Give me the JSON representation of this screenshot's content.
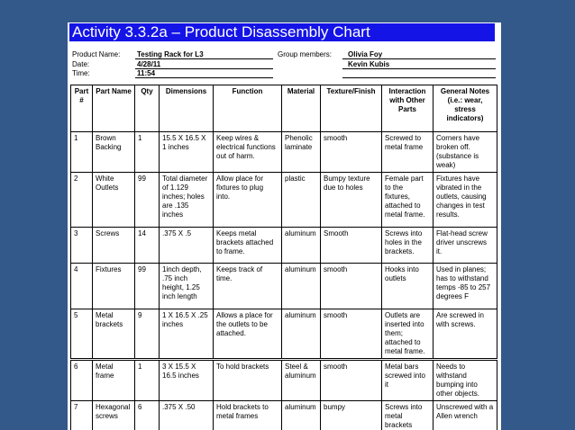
{
  "document": {
    "title": "Activity 3.3.2a – Product Disassembly Chart",
    "product_label": "Product Name:",
    "product_value": "Testing Rack for L3",
    "date_label": "Date:",
    "date_value": "4/28/11",
    "time_label": "Time:",
    "time_value": "11:54",
    "group_label": "Group members:",
    "members": [
      "Olivia Foy",
      "Kevin Kubis"
    ]
  },
  "table": {
    "headers": [
      "Part #",
      "Part Name",
      "Qty",
      "Dimensions",
      "Function",
      "Material",
      "Texture/Finish",
      "Interaction with Other Parts",
      "General Notes (i.e.: wear, stress indicators)"
    ],
    "rows": [
      [
        "1",
        "Brown Backing",
        "1",
        "15.5 X 16.5 X 1 inches",
        "Keep wires & electrical functions out of harm.",
        "Phenolic laminate",
        "smooth",
        "Screwed to metal frame",
        "Corners have broken off. (substance is weak)"
      ],
      [
        "2",
        "White Outlets",
        "99",
        "Total diameter of 1.129 inches; holes are .135 inches",
        "Allow place for fixtures to plug into.",
        "plastic",
        "Bumpy texture due to holes",
        "Female part to the fixtures, attached to metal frame.",
        "Fixtures have vibrated in the outlets, causing changes in test results."
      ],
      [
        "3",
        "Screws",
        "14",
        ".375 X .5",
        "Keeps metal brackets attached to frame.",
        "aluminum",
        "Smooth",
        "Screws into holes in the brackets.",
        "Flat-head screw driver unscrews it."
      ],
      [
        "4",
        "Fixtures",
        "99",
        "1inch depth, .75 inch height, 1.25 inch length",
        "Keeps track of time.",
        "aluminum",
        "smooth",
        "Hooks into outlets",
        "Used in planes; has to withstand temps -85 to 257 degrees F"
      ],
      [
        "5",
        "Metal brackets",
        "9",
        "1 X 16.5 X .25 inches",
        "Allows a place for the outlets to be attached.",
        "aluminum",
        "smooth",
        "Outlets are inserted into them; attached to metal frame.",
        "Are screwed in with screws."
      ],
      [
        "6",
        "Metal frame",
        "1",
        "3 X 15.5 X 16.5 inches",
        "To hold brackets",
        "Steel & aluminum",
        "smooth",
        "Metal bars screwed into it",
        "Needs to withstand bumping into other objects."
      ],
      [
        "7",
        "Hexagonal screws",
        "6",
        ".375 X .50",
        "Hold brackets to metal frames",
        "aluminum",
        "bumpy",
        "Screws into metal brackets",
        "Unscrewed with a Allen wrench"
      ]
    ]
  }
}
